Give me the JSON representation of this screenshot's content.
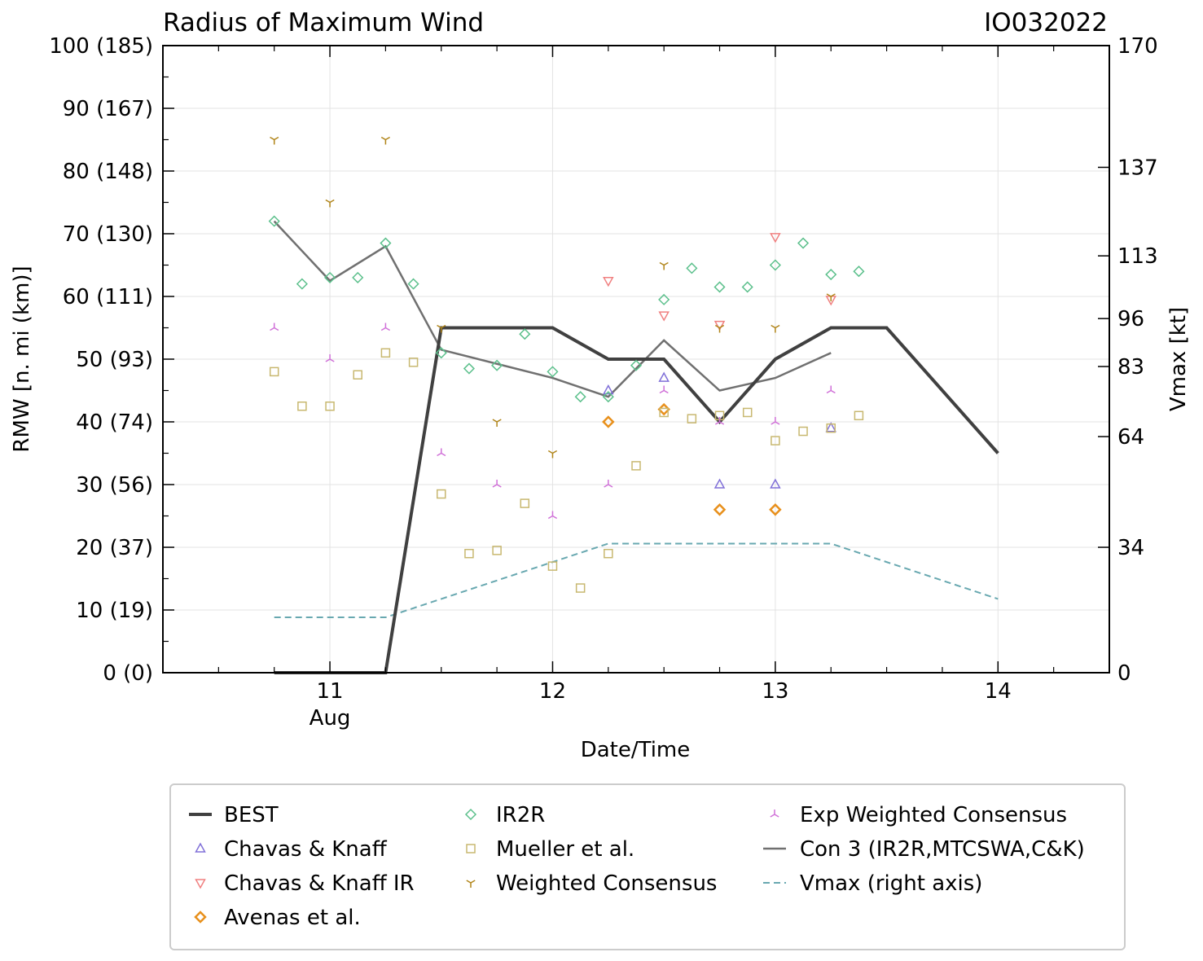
{
  "chart_data": {
    "type": "line",
    "title": "Radius of Maximum Wind",
    "storm_id": "IO032022",
    "xlabel": "Date/Time",
    "ylabel": "RMW [n. mi (km)]",
    "ylabel_right": "Vmax [kt]",
    "xlim": [
      10.25,
      14.5
    ],
    "ylim": [
      0,
      100
    ],
    "ylim_right": [
      0,
      170
    ],
    "x_ticks": [
      {
        "value": 11,
        "label": "11",
        "sublabel": "Aug"
      },
      {
        "value": 12,
        "label": "12",
        "sublabel": ""
      },
      {
        "value": 13,
        "label": "13",
        "sublabel": ""
      },
      {
        "value": 14,
        "label": "14",
        "sublabel": ""
      }
    ],
    "y_ticks": [
      {
        "value": 0,
        "label": "0 (0)"
      },
      {
        "value": 10,
        "label": "10 (19)"
      },
      {
        "value": 20,
        "label": "20 (37)"
      },
      {
        "value": 30,
        "label": "30 (56)"
      },
      {
        "value": 40,
        "label": "40 (74)"
      },
      {
        "value": 50,
        "label": "50 (93)"
      },
      {
        "value": 60,
        "label": "60 (111)"
      },
      {
        "value": 70,
        "label": "70 (130)"
      },
      {
        "value": 80,
        "label": "80 (148)"
      },
      {
        "value": 90,
        "label": "90 (167)"
      },
      {
        "value": 100,
        "label": "100 (185)"
      }
    ],
    "y_ticks_right": [
      {
        "value": 0,
        "label": "0"
      },
      {
        "value": 34,
        "label": "34"
      },
      {
        "value": 64,
        "label": "64"
      },
      {
        "value": 83,
        "label": "83"
      },
      {
        "value": 96,
        "label": "96"
      },
      {
        "value": 113,
        "label": "113"
      },
      {
        "value": 137,
        "label": "137"
      },
      {
        "value": 170,
        "label": "170"
      }
    ],
    "grid": true,
    "legend_position": "bottom",
    "series": [
      {
        "name": "BEST",
        "style": "line",
        "color": "#404040",
        "x": [
          10.75,
          11.0,
          11.25,
          11.5,
          11.75,
          12.0,
          12.25,
          12.5,
          12.75,
          13.0,
          13.25,
          13.5,
          14.0
        ],
        "y": [
          0,
          0,
          0,
          55,
          55,
          55,
          50,
          50,
          40,
          50,
          55,
          55,
          35
        ]
      },
      {
        "name": "Chavas & Knaff",
        "style": "marker",
        "marker": "triangle-up",
        "color": "#8070d8",
        "x": [
          12.25,
          12.5,
          12.75,
          13.0,
          13.25
        ],
        "y": [
          45,
          47,
          30,
          30,
          39
        ]
      },
      {
        "name": "Chavas & Knaff IR",
        "style": "marker",
        "marker": "triangle-down",
        "color": "#f08080",
        "x": [
          12.25,
          12.5,
          12.75,
          13.0,
          13.25
        ],
        "y": [
          62.5,
          57,
          55.5,
          69.5,
          59.5
        ]
      },
      {
        "name": "Avenas et al.",
        "style": "marker",
        "marker": "diamond-bold",
        "color": "#e8901c",
        "x": [
          12.25,
          12.5,
          12.75,
          13.0
        ],
        "y": [
          40,
          42,
          26,
          26
        ]
      },
      {
        "name": "IR2R",
        "style": "marker",
        "marker": "diamond",
        "color": "#5cc08c",
        "x": [
          10.75,
          10.875,
          11.0,
          11.125,
          11.25,
          11.375,
          11.5,
          11.625,
          11.75,
          11.875,
          12.0,
          12.125,
          12.25,
          12.375,
          12.5,
          12.625,
          12.75,
          12.875,
          13.0,
          13.125,
          13.25,
          13.375
        ],
        "y": [
          72,
          62,
          63,
          63,
          68.5,
          62,
          51,
          48.5,
          49,
          54,
          48,
          44,
          44,
          49,
          59.5,
          64.5,
          61.5,
          61.5,
          65,
          68.5,
          63.5,
          64
        ]
      },
      {
        "name": "Mueller et al.",
        "style": "marker",
        "marker": "square",
        "color": "#c8b870",
        "x": [
          10.75,
          10.875,
          11.0,
          11.125,
          11.25,
          11.375,
          11.5,
          11.625,
          11.75,
          11.875,
          12.0,
          12.125,
          12.25,
          12.375,
          12.5,
          12.625,
          12.75,
          12.875,
          13.0,
          13.125,
          13.25,
          13.375
        ],
        "y": [
          48,
          42.5,
          42.5,
          47.5,
          51,
          49.5,
          28.5,
          19,
          19.5,
          27,
          17,
          13.5,
          19,
          33,
          41.5,
          40.5,
          41,
          41.5,
          37,
          38.5,
          39,
          41
        ]
      },
      {
        "name": "Weighted Consensus",
        "style": "marker",
        "marker": "tri-down",
        "color": "#b08418",
        "x": [
          10.75,
          11.0,
          11.25,
          11.5,
          11.75,
          12.0,
          12.5,
          12.75,
          13.0,
          13.25
        ],
        "y": [
          85,
          75,
          85,
          55,
          40,
          35,
          65,
          55,
          55,
          60
        ]
      },
      {
        "name": "Exp Weighted Consensus",
        "style": "marker",
        "marker": "tri-up",
        "color": "#d070d8",
        "x": [
          10.75,
          11.0,
          11.25,
          11.5,
          11.75,
          12.0,
          12.25,
          12.5,
          12.75,
          13.0,
          13.25
        ],
        "y": [
          55,
          50,
          55,
          35,
          30,
          25,
          30,
          45,
          40,
          40,
          45
        ]
      },
      {
        "name": "Con 3 (IR2R,MTCSWA,C&K)",
        "style": "line",
        "color": "#707070",
        "x": [
          10.75,
          11.0,
          11.25,
          11.5,
          12.0,
          12.25,
          12.5,
          12.75,
          13.0,
          13.25
        ],
        "y": [
          72,
          62.5,
          68,
          51.5,
          47,
          44,
          53,
          45,
          47,
          51
        ]
      },
      {
        "name": "Vmax (right axis)",
        "style": "dashed",
        "color": "#68a8b0",
        "axis": "right",
        "x": [
          10.75,
          11.0,
          11.25,
          11.5,
          11.75,
          12.0,
          12.25,
          12.5,
          12.75,
          13.0,
          13.25,
          13.5,
          14.0
        ],
        "y": [
          15,
          15,
          15,
          20,
          25,
          30,
          35,
          35,
          35,
          35,
          35,
          30,
          20
        ]
      }
    ]
  }
}
